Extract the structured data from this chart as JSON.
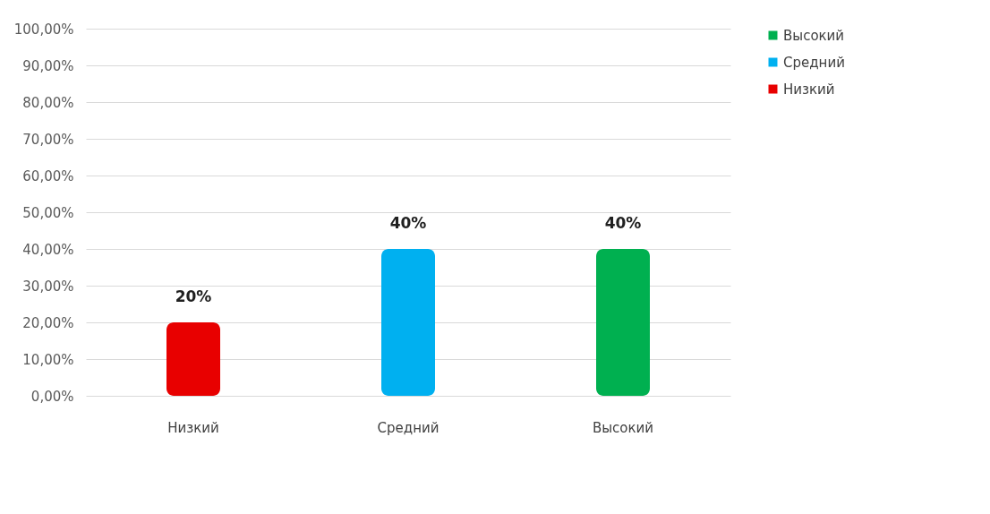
{
  "chart_data": {
    "type": "bar",
    "categories": [
      "Низкий",
      "Средний",
      "Высокий"
    ],
    "series": [
      {
        "name": "Низкий",
        "color": "#e80000",
        "values": [
          20,
          null,
          null
        ],
        "value_labels": [
          "20%",
          null,
          null
        ]
      },
      {
        "name": "Средний",
        "color": "#00b0f0",
        "values": [
          null,
          40,
          null
        ],
        "value_labels": [
          null,
          "40%",
          null
        ]
      },
      {
        "name": "Высокий",
        "color": "#00b050",
        "values": [
          null,
          null,
          40
        ],
        "value_labels": [
          null,
          null,
          "40%"
        ]
      }
    ],
    "ylim": [
      0,
      100
    ],
    "yticks": [
      {
        "value": 0,
        "label": "0,00%"
      },
      {
        "value": 10,
        "label": "10,00%"
      },
      {
        "value": 20,
        "label": "20,00%"
      },
      {
        "value": 30,
        "label": "30,00%"
      },
      {
        "value": 40,
        "label": "40,00%"
      },
      {
        "value": 50,
        "label": "50,00%"
      },
      {
        "value": 60,
        "label": "60,00%"
      },
      {
        "value": 70,
        "label": "70,00%"
      },
      {
        "value": 80,
        "label": "80,00%"
      },
      {
        "value": 90,
        "label": "90,00%"
      },
      {
        "value": 100,
        "label": "100,00%"
      }
    ],
    "grid": "y",
    "legend": "right"
  }
}
